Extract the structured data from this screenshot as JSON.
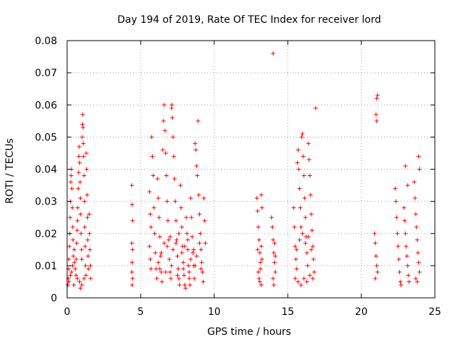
{
  "chart_data": {
    "type": "scatter",
    "title": "Day 194 of 2019, Rate Of TEC Index for receiver lord",
    "xlabel": "GPS time / hours",
    "ylabel": "ROTI / TECUs",
    "xlim": [
      0,
      25
    ],
    "ylim": [
      0,
      0.08
    ],
    "xticks": [
      0,
      5,
      10,
      15,
      20,
      25
    ],
    "xtick_labels": [
      "0",
      "5",
      "10",
      "15",
      "20",
      "25"
    ],
    "yticks": [
      0,
      0.01,
      0.02,
      0.03,
      0.04,
      0.05,
      0.06,
      0.07,
      0.08
    ],
    "ytick_labels": [
      "0",
      "0.01",
      "0.02",
      "0.03",
      "0.04",
      "0.05",
      "0.06",
      "0.07",
      "0.08"
    ],
    "grid": true,
    "marker": "plus",
    "series": [
      {
        "color": "#ff0000",
        "points": [
          [
            0.05,
            0.004
          ],
          [
            0.08,
            0.006
          ],
          [
            0.1,
            0.009
          ],
          [
            0.12,
            0.012
          ],
          [
            0.15,
            0.016
          ],
          [
            0.18,
            0.02
          ],
          [
            0.2,
            0.025
          ],
          [
            0.22,
            0.03
          ],
          [
            0.25,
            0.036
          ],
          [
            0.27,
            0.038
          ],
          [
            0.3,
            0.04
          ],
          [
            0.32,
            0.034
          ],
          [
            0.35,
            0.028
          ],
          [
            0.38,
            0.022
          ],
          [
            0.4,
            0.018
          ],
          [
            0.12,
            0.005
          ],
          [
            0.22,
            0.007
          ],
          [
            0.3,
            0.008
          ],
          [
            0.36,
            0.01
          ],
          [
            0.42,
            0.013
          ],
          [
            0.48,
            0.015
          ],
          [
            0.5,
            0.011
          ],
          [
            0.55,
            0.009
          ],
          [
            0.6,
            0.007
          ],
          [
            0.62,
            0.012
          ],
          [
            0.65,
            0.017
          ],
          [
            0.68,
            0.021
          ],
          [
            0.7,
            0.024
          ],
          [
            0.72,
            0.028
          ],
          [
            0.75,
            0.034
          ],
          [
            0.78,
            0.039
          ],
          [
            0.8,
            0.044
          ],
          [
            0.82,
            0.047
          ],
          [
            0.85,
            0.042
          ],
          [
            0.88,
            0.036
          ],
          [
            0.9,
            0.031
          ],
          [
            0.92,
            0.026
          ],
          [
            0.95,
            0.02
          ],
          [
            0.98,
            0.015
          ],
          [
            1.0,
            0.012
          ],
          [
            1.02,
            0.05
          ],
          [
            1.04,
            0.054
          ],
          [
            1.06,
            0.057
          ],
          [
            1.08,
            0.053
          ],
          [
            1.1,
            0.048
          ],
          [
            1.12,
            0.044
          ],
          [
            1.15,
            0.038
          ],
          [
            1.18,
            0.03
          ],
          [
            1.2,
            0.022
          ],
          [
            1.22,
            0.016
          ],
          [
            1.25,
            0.01
          ],
          [
            1.28,
            0.007
          ],
          [
            1.3,
            0.045
          ],
          [
            1.33,
            0.04
          ],
          [
            1.36,
            0.032
          ],
          [
            1.38,
            0.025
          ],
          [
            1.4,
            0.018
          ],
          [
            1.42,
            0.013
          ],
          [
            1.45,
            0.009
          ],
          [
            1.5,
            0.026
          ],
          [
            1.52,
            0.02
          ],
          [
            1.55,
            0.015
          ],
          [
            1.58,
            0.01
          ],
          [
            1.6,
            0.006
          ],
          [
            0.7,
            0.006
          ],
          [
            0.85,
            0.005
          ],
          [
            1.0,
            0.004
          ],
          [
            1.15,
            0.006
          ],
          [
            0.45,
            0.004
          ],
          [
            0.9,
            0.003
          ],
          [
            4.4,
            0.035
          ],
          [
            4.42,
            0.029
          ],
          [
            4.45,
            0.024
          ],
          [
            4.4,
            0.017
          ],
          [
            4.45,
            0.015
          ],
          [
            4.42,
            0.011
          ],
          [
            4.4,
            0.008
          ],
          [
            4.45,
            0.006
          ],
          [
            4.42,
            0.004
          ],
          [
            5.6,
            0.033
          ],
          [
            5.65,
            0.026
          ],
          [
            5.7,
            0.022
          ],
          [
            5.6,
            0.016
          ],
          [
            5.65,
            0.012
          ],
          [
            5.7,
            0.009
          ],
          [
            5.75,
            0.05
          ],
          [
            5.8,
            0.044
          ],
          [
            5.85,
            0.038
          ],
          [
            5.9,
            0.028
          ],
          [
            5.95,
            0.02
          ],
          [
            6.0,
            0.014
          ],
          [
            6.05,
            0.009
          ],
          [
            6.1,
            0.006
          ],
          [
            6.15,
            0.037
          ],
          [
            6.2,
            0.031
          ],
          [
            6.25,
            0.025
          ],
          [
            6.3,
            0.019
          ],
          [
            6.35,
            0.013
          ],
          [
            6.4,
            0.008
          ],
          [
            6.45,
            0.005
          ],
          [
            6.5,
            0.046
          ],
          [
            6.55,
            0.055
          ],
          [
            6.6,
            0.06
          ],
          [
            6.65,
            0.052
          ],
          [
            6.7,
            0.045
          ],
          [
            6.75,
            0.038
          ],
          [
            6.8,
            0.03
          ],
          [
            6.85,
            0.024
          ],
          [
            6.9,
            0.018
          ],
          [
            6.95,
            0.012
          ],
          [
            7.0,
            0.008
          ],
          [
            7.05,
            0.006
          ],
          [
            7.1,
            0.059
          ],
          [
            7.12,
            0.06
          ],
          [
            7.15,
            0.056
          ],
          [
            7.2,
            0.05
          ],
          [
            7.25,
            0.044
          ],
          [
            7.3,
            0.037
          ],
          [
            7.35,
            0.03
          ],
          [
            7.4,
            0.024
          ],
          [
            7.45,
            0.018
          ],
          [
            7.5,
            0.013
          ],
          [
            7.55,
            0.009
          ],
          [
            7.6,
            0.006
          ],
          [
            7.65,
            0.004
          ],
          [
            7.7,
            0.035
          ],
          [
            7.75,
            0.028
          ],
          [
            7.8,
            0.022
          ],
          [
            7.85,
            0.016
          ],
          [
            7.9,
            0.011
          ],
          [
            7.95,
            0.007
          ],
          [
            8.0,
            0.004
          ],
          [
            8.05,
            0.003
          ],
          [
            8.1,
            0.025
          ],
          [
            8.15,
            0.02
          ],
          [
            8.2,
            0.015
          ],
          [
            8.25,
            0.01
          ],
          [
            8.3,
            0.006
          ],
          [
            8.35,
            0.004
          ],
          [
            8.4,
            0.031
          ],
          [
            8.45,
            0.025
          ],
          [
            8.5,
            0.019
          ],
          [
            8.55,
            0.014
          ],
          [
            8.6,
            0.01
          ],
          [
            8.65,
            0.006
          ],
          [
            8.7,
            0.048
          ],
          [
            8.75,
            0.046
          ],
          [
            8.8,
            0.041
          ],
          [
            8.85,
            0.038
          ],
          [
            8.9,
            0.055
          ],
          [
            8.95,
            0.032
          ],
          [
            9.0,
            0.026
          ],
          [
            9.05,
            0.02
          ],
          [
            9.1,
            0.015
          ],
          [
            9.15,
            0.011
          ],
          [
            9.2,
            0.008
          ],
          [
            9.25,
            0.005
          ],
          [
            9.3,
            0.031
          ],
          [
            9.35,
            0.024
          ],
          [
            9.4,
            0.017
          ],
          [
            6.2,
            0.011
          ],
          [
            6.4,
            0.014
          ],
          [
            6.6,
            0.017
          ],
          [
            6.8,
            0.016
          ],
          [
            7.0,
            0.019
          ],
          [
            7.2,
            0.015
          ],
          [
            7.4,
            0.017
          ],
          [
            7.6,
            0.02
          ],
          [
            7.8,
            0.014
          ],
          [
            8.0,
            0.016
          ],
          [
            8.2,
            0.018
          ],
          [
            8.4,
            0.012
          ],
          [
            8.6,
            0.015
          ],
          [
            8.8,
            0.013
          ],
          [
            9.0,
            0.017
          ],
          [
            6.3,
            0.009
          ],
          [
            6.7,
            0.008
          ],
          [
            7.1,
            0.01
          ],
          [
            7.5,
            0.007
          ],
          [
            7.9,
            0.009
          ],
          [
            8.3,
            0.008
          ],
          [
            8.7,
            0.01
          ],
          [
            9.1,
            0.009
          ],
          [
            12.9,
            0.031
          ],
          [
            12.95,
            0.027
          ],
          [
            13.0,
            0.022
          ],
          [
            13.05,
            0.018
          ],
          [
            13.1,
            0.014
          ],
          [
            13.15,
            0.011
          ],
          [
            13.2,
            0.032
          ],
          [
            13.25,
            0.028
          ],
          [
            13.0,
            0.008
          ],
          [
            13.05,
            0.006
          ],
          [
            13.1,
            0.005
          ],
          [
            13.15,
            0.009
          ],
          [
            13.2,
            0.016
          ],
          [
            13.25,
            0.012
          ],
          [
            12.95,
            0.015
          ],
          [
            13.2,
            0.004
          ],
          [
            13.9,
            0.025
          ],
          [
            13.95,
            0.022
          ],
          [
            14.0,
            0.018
          ],
          [
            14.05,
            0.014
          ],
          [
            14.1,
            0.011
          ],
          [
            14.15,
            0.008
          ],
          [
            14.0,
            0.006
          ],
          [
            14.05,
            0.004
          ],
          [
            14.1,
            0.017
          ],
          [
            14.15,
            0.013
          ],
          [
            14.0,
            0.076
          ],
          [
            15.4,
            0.028
          ],
          [
            15.45,
            0.022
          ],
          [
            15.5,
            0.016
          ],
          [
            15.55,
            0.012
          ],
          [
            15.6,
            0.009
          ],
          [
            15.65,
            0.042
          ],
          [
            15.7,
            0.046
          ],
          [
            15.75,
            0.04
          ],
          [
            15.8,
            0.034
          ],
          [
            15.85,
            0.028
          ],
          [
            15.9,
            0.022
          ],
          [
            15.95,
            0.05
          ],
          [
            16.0,
            0.051
          ],
          [
            16.05,
            0.044
          ],
          [
            16.1,
            0.038
          ],
          [
            16.15,
            0.031
          ],
          [
            16.2,
            0.025
          ],
          [
            16.25,
            0.019
          ],
          [
            16.3,
            0.014
          ],
          [
            16.35,
            0.01
          ],
          [
            16.4,
            0.048
          ],
          [
            16.45,
            0.043
          ],
          [
            16.5,
            0.038
          ],
          [
            16.55,
            0.032
          ],
          [
            16.6,
            0.026
          ],
          [
            16.65,
            0.021
          ],
          [
            16.7,
            0.016
          ],
          [
            16.75,
            0.012
          ],
          [
            16.8,
            0.008
          ],
          [
            15.5,
            0.006
          ],
          [
            15.7,
            0.005
          ],
          [
            15.9,
            0.004
          ],
          [
            16.1,
            0.006
          ],
          [
            16.3,
            0.005
          ],
          [
            16.5,
            0.007
          ],
          [
            16.7,
            0.006
          ],
          [
            15.6,
            0.015
          ],
          [
            15.8,
            0.018
          ],
          [
            16.0,
            0.02
          ],
          [
            16.2,
            0.017
          ],
          [
            16.4,
            0.019
          ],
          [
            16.6,
            0.015
          ],
          [
            16.9,
            0.059
          ],
          [
            20.9,
            0.02
          ],
          [
            20.95,
            0.017
          ],
          [
            21.0,
            0.013
          ],
          [
            21.05,
            0.01
          ],
          [
            21.1,
            0.008
          ],
          [
            20.95,
            0.006
          ],
          [
            21.05,
            0.062
          ],
          [
            21.1,
            0.063
          ],
          [
            21.0,
            0.057
          ],
          [
            21.05,
            0.055
          ],
          [
            22.3,
            0.034
          ],
          [
            22.35,
            0.03
          ],
          [
            22.4,
            0.025
          ],
          [
            22.45,
            0.02
          ],
          [
            22.5,
            0.016
          ],
          [
            22.55,
            0.012
          ],
          [
            22.6,
            0.008
          ],
          [
            22.65,
            0.005
          ],
          [
            22.7,
            0.004
          ],
          [
            22.9,
            0.028
          ],
          [
            22.95,
            0.024
          ],
          [
            23.0,
            0.02
          ],
          [
            23.05,
            0.016
          ],
          [
            23.1,
            0.013
          ],
          [
            23.15,
            0.01
          ],
          [
            23.2,
            0.007
          ],
          [
            23.25,
            0.005
          ],
          [
            23.0,
            0.041
          ],
          [
            23.15,
            0.035
          ],
          [
            23.6,
            0.036
          ],
          [
            23.65,
            0.031
          ],
          [
            23.7,
            0.026
          ],
          [
            23.75,
            0.022
          ],
          [
            23.8,
            0.018
          ],
          [
            23.85,
            0.014
          ],
          [
            23.9,
            0.011
          ],
          [
            23.95,
            0.008
          ],
          [
            23.9,
            0.044
          ],
          [
            23.95,
            0.04
          ],
          [
            23.7,
            0.006
          ],
          [
            23.8,
            0.005
          ]
        ]
      }
    ]
  }
}
